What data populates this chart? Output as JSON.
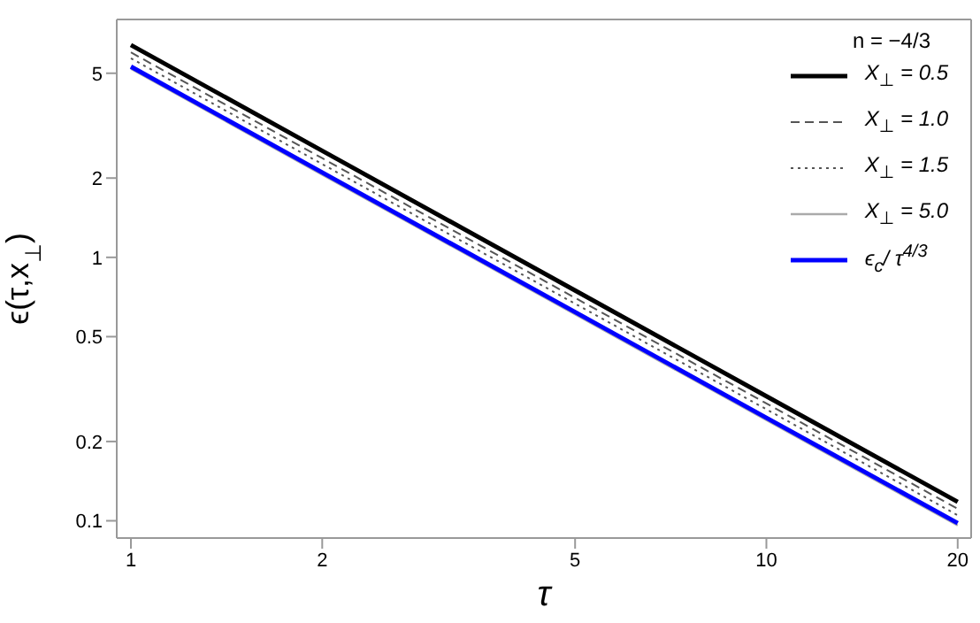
{
  "chart_data": {
    "type": "line",
    "xlabel": "τ",
    "ylabel": "ϵ(τ,x$_{⊥}$)",
    "legend_title": "n = −4/3",
    "legend": "top right",
    "log": "xy",
    "x": [
      1,
      2,
      5,
      10,
      20
    ],
    "xlim": [
      0.95,
      21
    ],
    "xticks": [
      1,
      2,
      5,
      10,
      20
    ],
    "ylim": [
      0.086,
      8
    ],
    "yticks": [
      0.1,
      0.2,
      0.5,
      1,
      2,
      5
    ],
    "series": [
      {
        "name": "X$_{⊥}$ = 0.5",
        "color": "#000000",
        "line_style": "solid",
        "values": [
          6.4,
          2.54,
          0.749,
          0.297,
          0.118
        ]
      },
      {
        "name": "X$_{⊥}$ = 1.0",
        "color": "#555555",
        "line_style": "dashed",
        "values": [
          6.0,
          2.38,
          0.702,
          0.279,
          0.111
        ]
      },
      {
        "name": "X$_{⊥}$ = 1.5",
        "color": "#555555",
        "line_style": "dotted",
        "values": [
          5.7,
          2.26,
          0.667,
          0.265,
          0.105
        ]
      },
      {
        "name": "X$_{⊥}$ = 5.0",
        "color": "#aaaaaa",
        "line_style": "solid",
        "values": [
          5.2,
          2.06,
          0.608,
          0.241,
          0.096
        ]
      },
      {
        "name": "ϵ$_{c}$/ τ$^{4/3}$",
        "color": "#0000ff",
        "line_style": "solid",
        "values": [
          5.3,
          2.1,
          0.62,
          0.246,
          0.098
        ]
      }
    ]
  }
}
